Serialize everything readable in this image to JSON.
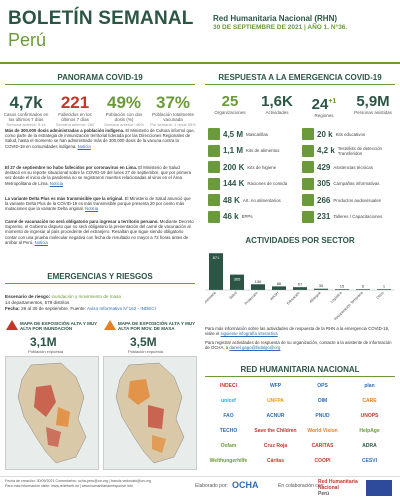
{
  "header": {
    "title": "BOLETÍN SEMANAL",
    "country": "Perú",
    "org": "Red Humanitaria Nacional (RHN)",
    "date_line": "30 DE SEPTIEMBRE DE 2021 | AÑO 1. N°36."
  },
  "covid": {
    "section_title": "PANORAMA COVID-19",
    "kpis": [
      {
        "value": "4,7k",
        "label": "Casos confirmados\nen los últimos 7 días",
        "sub": "Semana anterior: 5,1k"
      },
      {
        "value": "221",
        "label": "Fallecidos\nen los últimos 7 días",
        "sub": "Semana anterior: 280"
      },
      {
        "value": "49%",
        "label": "Población con\ndos dosis (%)",
        "sub": "Semana anterior: 46%"
      },
      {
        "value": "37%",
        "label": "Población totalmente\nvacunada",
        "sub": "Por semana: 1 dosis 55%"
      }
    ],
    "paragraphs": [
      {
        "bold": "Más de 300.000 dosis administradas a población indígena.",
        "text": " El Ministerio de Cultura informó que, como parte de la estrategia de inmunización territorial liderada por las Direcciones Regionales de Salud, hasta el momento se han administrado más de 300,000 dosis de la vacuna contra la COVID-19 en comunidades indígena.",
        "link": "Noticia"
      },
      {
        "bold": "El 27 de septiembre no hubo fallecidos por coronavirus en Lima.",
        "text": " El Ministerio de Salud destacó en su reporte situacional sobre la COVID-19 del lunes 27 de septiembre, que por primera vez desde el inicio de la pandemia no se registraron muertes relacionadas al virus en el Área Metropolitana de Lima.",
        "link": "Noticia"
      },
      {
        "bold": "La variante Delta Plus es más transmisible que la original.",
        "text": " El Ministerio de Salud anunció que la variante Delta Plus de la COVID-19 es más transmisible porque presenta 20 por ciento más mutaciones que la variante Delta original.",
        "link": "Noticia"
      },
      {
        "bold": "Carné de vacunación no será obligatorio para ingresar a territorio peruano.",
        "text": " Mediante Decreto Supremo, el Gobierno dispuso que no será obligatorio la presentación del carné de vacunación al momento de ingresar al país procedente del extranjero. Resaltan que sigue siendo obligatorio contar con una prueba molecular negativa con fecha de resultado no mayor a 72 horas antes de arribar al Perú.",
        "link": "Noticia"
      }
    ]
  },
  "emergencies": {
    "section_title": "EMERGENCIAS Y RIESGOS",
    "scenario_label": "Escenario de riesgo:",
    "scenario_value": "inundación y movimiento de masa",
    "depts_line": "14 departamentos, 579 distritos",
    "date_label": "Fecha:",
    "date_value": "29 al 30 de septiembre.",
    "source_label": "Fuente:",
    "source_link": "Aviso Informativo N°162 - INDECI",
    "map1": {
      "title": "MAPA DE EXPOSICIÓN ALTA Y MUY ALTA POR INUNDACIÓN",
      "value": "3,1M",
      "sub": "Población expuesta"
    },
    "map2": {
      "title": "MAPA DE EXPOSICIÓN ALTA Y MUY ALTA POR MOV. DE MASA",
      "value": "3,5M",
      "sub": "Población expuesta"
    }
  },
  "response": {
    "section_title": "RESPUESTA A LA EMERGENCIA COVID-19",
    "kpis": [
      {
        "value": "25",
        "label": "Organizaciones"
      },
      {
        "value": "1,6K",
        "label": "Actividades"
      },
      {
        "value": "24",
        "sup": "+1",
        "label": "Regiones"
      },
      {
        "value": "5,9M",
        "label": "Personas asistidas"
      }
    ],
    "left_items": [
      {
        "value": "4,5 M",
        "label": "Mascarillas"
      },
      {
        "value": "1,1 M",
        "label": "Kits de alimentos"
      },
      {
        "value": "200 K",
        "label": "Kits de higiene"
      },
      {
        "value": "144 K",
        "label": "Raciones de comida"
      },
      {
        "value": "48 K",
        "label": "Art. no alimentarios"
      },
      {
        "value": "46 k",
        "label": "EPPs"
      }
    ],
    "right_items": [
      {
        "value": "20 k",
        "label": "Kits educativos"
      },
      {
        "value": "4,2 k",
        "label": "Tests/kits de detección\nTransferidos"
      },
      {
        "value": "429",
        "label": "Asistencias técnicas"
      },
      {
        "value": "305",
        "label": "Campañas informativas"
      },
      {
        "value": "266",
        "label": "Productos audiovisuales"
      },
      {
        "value": "231",
        "label": "Talleres / Capacitaciones"
      }
    ]
  },
  "chart_data": {
    "type": "bar",
    "title": "ACTIVIDADES POR SECTOR",
    "categories": [
      "Seguridad Alimentaria",
      "Salud",
      "Protección",
      "WASH",
      "Educación",
      "Albergue",
      "Logística",
      "Recuperación Temprana",
      "Otros"
    ],
    "values": [
      871,
      365,
      136,
      86,
      67,
      30,
      15,
      6,
      1
    ],
    "ylim": [
      0,
      900
    ]
  },
  "info": {
    "line1_text": "Para más información sobre las actividades de respuesta de la RHN a la emergencia COVID-19, visite el ",
    "line1_link": "siguiente infografía interactiva",
    "line2_text": "Para registrar actividades de respuesta de su organización, contacte a la asistente de información de OCHA, a ",
    "line2_link": "daniel.gago@hidalgo@org"
  },
  "rhn": {
    "section_title": "RED HUMANITARIA NACIONAL",
    "logos": [
      {
        "name": "INDECI",
        "color": "#c0392b"
      },
      {
        "name": "WFP",
        "color": "#2e6db4"
      },
      {
        "name": "OPS",
        "color": "#2e6db4"
      },
      {
        "name": "plan",
        "color": "#2e6db4"
      },
      {
        "name": "unicef",
        "color": "#29a8e0"
      },
      {
        "name": "UNFPA",
        "color": "#f39c12"
      },
      {
        "name": "OIM",
        "color": "#2e6db4"
      },
      {
        "name": "CARE",
        "color": "#e67e22"
      },
      {
        "name": "FAO",
        "color": "#2e6db4"
      },
      {
        "name": "ACNUR",
        "color": "#2e6db4"
      },
      {
        "name": "PNUD",
        "color": "#2e6db4"
      },
      {
        "name": "UNOPS",
        "color": "#c0392b"
      },
      {
        "name": "TECHO",
        "color": "#2e6db4"
      },
      {
        "name": "Save the Children",
        "color": "#c0392b"
      },
      {
        "name": "World Vision",
        "color": "#e67e22"
      },
      {
        "name": "HelpAge",
        "color": "#6a9a3a"
      },
      {
        "name": "Oxfam",
        "color": "#6a9a3a"
      },
      {
        "name": "Cruz Roja",
        "color": "#c0392b"
      },
      {
        "name": "CARITAS",
        "color": "#c0392b"
      },
      {
        "name": "ADRA",
        "color": "#2c5545"
      },
      {
        "name": "Welthungerhilfe",
        "color": "#6a9a3a"
      },
      {
        "name": "Cáritas",
        "color": "#c0392b"
      },
      {
        "name": "COOPI",
        "color": "#c0392b"
      },
      {
        "name": "CESVI",
        "color": "#2e6db4"
      }
    ]
  },
  "footer": {
    "line1": "Fecha de creación: 30/09/2021  Comentarios: ocha-peru@un.org | francis.vedovato@un.org",
    "line2": "Para más información visite: www.reliefweb.int | www.humanitarianresponse.info",
    "elaborated_by": "Elaborado por:",
    "ocha": "OCHA",
    "collab": "En colaboración con:",
    "rhn": "Red Humanitaria Nacional",
    "rhn_sub": "Perú"
  }
}
